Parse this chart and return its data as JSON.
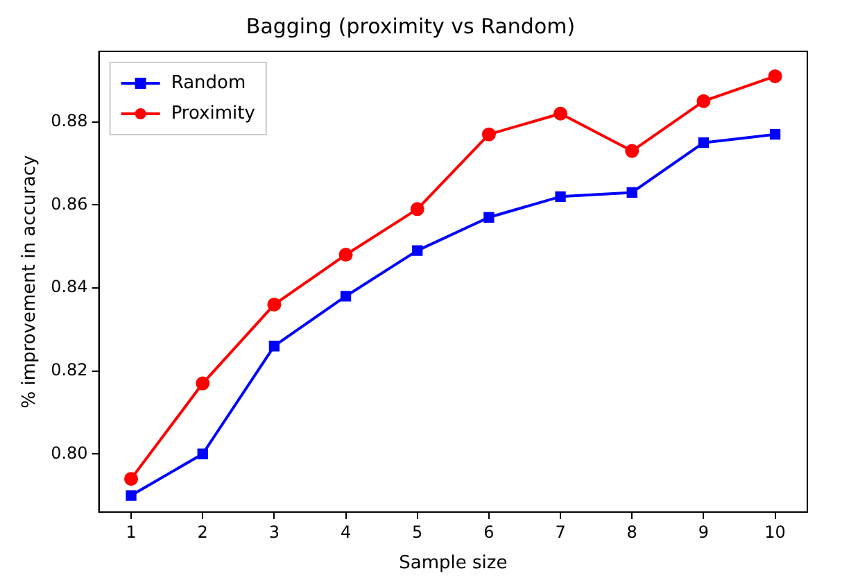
{
  "chart_data": {
    "type": "line",
    "title": "Bagging (proximity vs Random)",
    "xlabel": "Sample size",
    "ylabel": "% improvement in accuracy",
    "x": [
      1,
      2,
      3,
      4,
      5,
      6,
      7,
      8,
      9,
      10
    ],
    "series": [
      {
        "name": "Random",
        "color": "#0000ff",
        "marker": "square",
        "values": [
          0.79,
          0.8,
          0.826,
          0.838,
          0.849,
          0.857,
          0.862,
          0.863,
          0.875,
          0.877
        ]
      },
      {
        "name": "Proximity",
        "color": "#ff0000",
        "marker": "circle",
        "values": [
          0.794,
          0.817,
          0.836,
          0.848,
          0.859,
          0.877,
          0.882,
          0.873,
          0.885,
          0.891
        ]
      }
    ],
    "xlim": [
      0.55,
      10.45
    ],
    "xticks": [
      1,
      2,
      3,
      4,
      5,
      6,
      7,
      8,
      9,
      10
    ],
    "ylim": [
      0.786,
      0.897
    ],
    "yticks": [
      {
        "value": 0.8,
        "label": "0.80"
      },
      0.82,
      0.84,
      0.86,
      0.88
    ],
    "grid": false,
    "legend": "top left",
    "line_style": "solid"
  }
}
